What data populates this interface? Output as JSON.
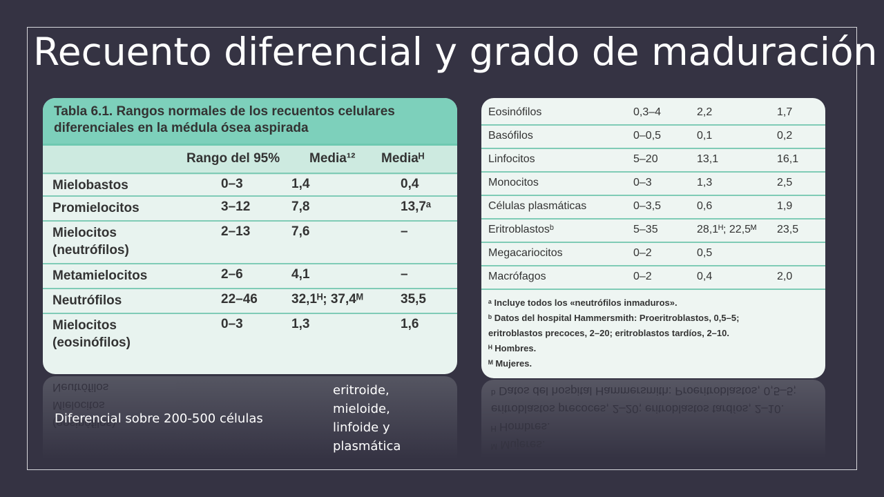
{
  "slide": {
    "title": "Recuento diferencial y grado de maduración",
    "note_left": "Diferencial sobre 200-500 células",
    "note_center": "eritroide, mieloide, linfoide y plasmática"
  },
  "table_left": {
    "caption_line1": "Tabla 6.1.   Rangos normales de los recuentos celulares",
    "caption_line2": "diferenciales en la médula ósea aspirada",
    "headers": [
      "Rango del 95%",
      "Media¹²",
      "Mediaᴴ"
    ],
    "rows": [
      {
        "name": "Mielobastos",
        "name2": "",
        "range": "0–3",
        "mean1": "1,4",
        "mean2": "0,4"
      },
      {
        "name": "Promielocitos",
        "name2": "",
        "range": "3–12",
        "mean1": "7,8",
        "mean2": "13,7ᵃ"
      },
      {
        "name": "Mielocitos",
        "name2": "(neutrófilos)",
        "range": "2–13",
        "mean1": "7,6",
        "mean2": "–"
      },
      {
        "name": "Metamielocitos",
        "name2": "",
        "range": "2–6",
        "mean1": "4,1",
        "mean2": "–"
      },
      {
        "name": "Neutrófilos",
        "name2": "",
        "range": "22–46",
        "mean1": "32,1ᴴ; 37,4ᴹ",
        "mean2": "35,5"
      },
      {
        "name": "Mielocitos",
        "name2": "(eosinófilos)",
        "range": "0–3",
        "mean1": "1,3",
        "mean2": "1,6"
      }
    ]
  },
  "table_right": {
    "rows": [
      {
        "name": "Eosinófilos",
        "range": "0,3–4",
        "mean1": "2,2",
        "mean2": "1,7"
      },
      {
        "name": "Basófilos",
        "range": "0–0,5",
        "mean1": "0,1",
        "mean2": "0,2"
      },
      {
        "name": "Linfocitos",
        "range": "5–20",
        "mean1": "13,1",
        "mean2": "16,1"
      },
      {
        "name": "Monocitos",
        "range": "0–3",
        "mean1": "1,3",
        "mean2": "2,5"
      },
      {
        "name": "Células plasmáticas",
        "range": "0–3,5",
        "mean1": "0,6",
        "mean2": "1,9"
      },
      {
        "name": "Eritroblastosᵇ",
        "range": "5–35",
        "mean1": "28,1ᴴ; 22,5ᴹ",
        "mean2": "23,5"
      },
      {
        "name": "Megacariocitos",
        "range": "0–2",
        "mean1": "0,5",
        "mean2": ""
      },
      {
        "name": "Macrófagos",
        "range": "0–2",
        "mean1": "0,4",
        "mean2": "2,0"
      }
    ],
    "notes": [
      "ᵃ Incluye todos los «neutrófilos inmaduros».",
      "ᵇ Datos del hospital Hammersmith: Proeritroblastos, 0,5–5;",
      "eritroblastos precoces, 2–20; eritroblastos tardíos, 2–10.",
      "ᴴ Hombres.",
      "ᴹ Mujeres."
    ]
  }
}
